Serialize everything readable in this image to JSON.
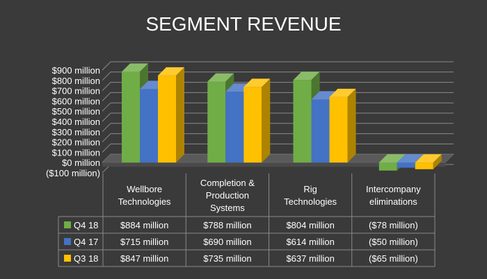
{
  "chart_data": {
    "type": "bar",
    "title": "SEGMENT REVENUE",
    "ylim": [
      -100,
      900
    ],
    "y_ticks": [
      900,
      800,
      700,
      600,
      500,
      400,
      300,
      200,
      100,
      0,
      -100
    ],
    "y_tick_labels": [
      "$900 million",
      "$800 million",
      "$700 million",
      "$600 million",
      "$500 million",
      "$400 million",
      "$300 million",
      "$200 million",
      "$100 million",
      "$0 million",
      "($100 million)"
    ],
    "categories": [
      [
        "Wellbore",
        "Technologies"
      ],
      [
        "Completion &",
        "Production",
        "Systems"
      ],
      [
        "Rig",
        "Technologies"
      ],
      [
        "Intercompany",
        "eliminations"
      ]
    ],
    "series": [
      {
        "name": "Q4 18",
        "color": "#70ad47",
        "values": [
          884,
          788,
          804,
          -78
        ],
        "labels": [
          "$884 million",
          "$788 million",
          "$804 million",
          "($78 million)"
        ]
      },
      {
        "name": "Q4 17",
        "color": "#4472c4",
        "values": [
          715,
          690,
          614,
          -50
        ],
        "labels": [
          "$715 million",
          "$690 million",
          "$614 million",
          "($50 million)"
        ]
      },
      {
        "name": "Q3 18",
        "color": "#ffc000",
        "values": [
          847,
          735,
          637,
          -65
        ],
        "labels": [
          "$847 million",
          "$735 million",
          "$637 million",
          "($65 million)"
        ]
      }
    ],
    "gridlines": true,
    "legend": "data-table"
  }
}
